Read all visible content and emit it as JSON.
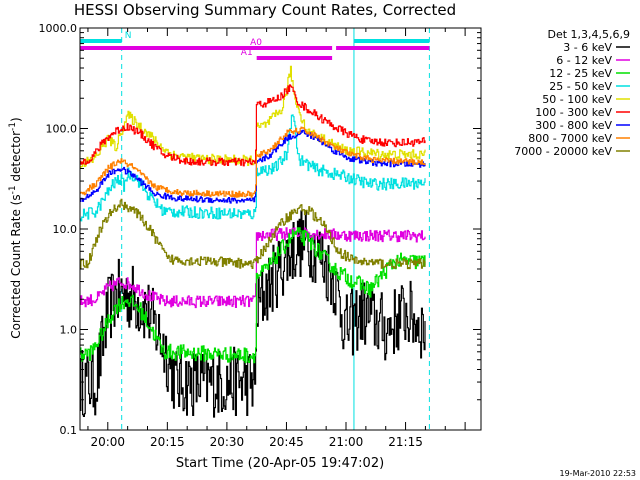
{
  "chart_data": {
    "type": "line",
    "title": "HESSI Observing Summary Count Rates, Corrected",
    "xlabel": "Start Time (20-Apr-05 19:47:02)",
    "ylabel_prefix": "Corrected Count Rate (s",
    "ylabel_sup1": "-1",
    "ylabel_mid": " detector",
    "ylabel_sup2": "-1",
    "ylabel_suffix": ")",
    "yscale": "log",
    "ylim": [
      0.1,
      1000
    ],
    "xlim_min": [
      -7,
      94
    ],
    "x_unit": "minutes after 20:00",
    "x_ticks": [
      {
        "value": 0,
        "label": "20:00"
      },
      {
        "value": 15,
        "label": "20:15"
      },
      {
        "value": 30,
        "label": "20:30"
      },
      {
        "value": 45,
        "label": "20:45"
      },
      {
        "value": 60,
        "label": "21:00"
      },
      {
        "value": 75,
        "label": "21:15"
      }
    ],
    "y_ticks": [
      {
        "value": 0.1,
        "label": "0.1"
      },
      {
        "value": 1,
        "label": "1.0"
      },
      {
        "value": 10,
        "label": "10.0"
      },
      {
        "value": 100,
        "label": "100.0"
      },
      {
        "value": 1000,
        "label": "1000.0"
      }
    ],
    "legend_header": "Det 1,3,4,5,6,9",
    "legend_position": "right",
    "series": [
      {
        "name": "3 - 6 keV",
        "color": "#000000",
        "points": [
          [
            -7,
            0.3
          ],
          [
            -3,
            0.3
          ],
          [
            0,
            1.5
          ],
          [
            2,
            2.2
          ],
          [
            4,
            2.3
          ],
          [
            7,
            2.0
          ],
          [
            10,
            1.5
          ],
          [
            14,
            0.7
          ],
          [
            17,
            0.3
          ],
          [
            37.2,
            0.3
          ],
          [
            37.3,
            1.5
          ],
          [
            40,
            2.5
          ],
          [
            43,
            4.0
          ],
          [
            46,
            6.0
          ],
          [
            49,
            7.5
          ],
          [
            52,
            6.5
          ],
          [
            54,
            5.0
          ],
          [
            57,
            3.0
          ],
          [
            60,
            1.0
          ],
          [
            64,
            1.5
          ],
          [
            70,
            1.0
          ],
          [
            75,
            1.5
          ],
          [
            80,
            1.0
          ]
        ],
        "noise": 0.35
      },
      {
        "name": "6 - 12 keV",
        "color": "#e000e0",
        "points": [
          [
            -7,
            1.9
          ],
          [
            -3,
            2.0
          ],
          [
            0,
            2.6
          ],
          [
            3,
            3.0
          ],
          [
            6,
            2.8
          ],
          [
            10,
            2.2
          ],
          [
            14,
            1.9
          ],
          [
            37.2,
            1.9
          ],
          [
            37.3,
            8.6
          ],
          [
            42,
            8.8
          ],
          [
            48,
            9.2
          ],
          [
            52,
            9.0
          ],
          [
            56,
            8.8
          ],
          [
            62,
            8.6
          ],
          [
            70,
            8.6
          ],
          [
            80,
            8.5
          ]
        ],
        "noise": 0.06
      },
      {
        "name": "12 - 25 keV",
        "color": "#00e000",
        "points": [
          [
            -7,
            0.55
          ],
          [
            -4,
            0.6
          ],
          [
            -1,
            1.0
          ],
          [
            2,
            1.7
          ],
          [
            5,
            2.0
          ],
          [
            8,
            1.6
          ],
          [
            11,
            1.0
          ],
          [
            14,
            0.6
          ],
          [
            37.2,
            0.55
          ],
          [
            37.3,
            3.3
          ],
          [
            40,
            4.0
          ],
          [
            44,
            6.5
          ],
          [
            47,
            9.0
          ],
          [
            50,
            8.0
          ],
          [
            53,
            6.0
          ],
          [
            57,
            4.0
          ],
          [
            60,
            3.3
          ],
          [
            66,
            2.5
          ],
          [
            72,
            4.8
          ],
          [
            80,
            4.7
          ]
        ],
        "noise": 0.08
      },
      {
        "name": "25 - 50 keV",
        "color": "#00e0e0",
        "points": [
          [
            -7,
            13.5
          ],
          [
            -3,
            15
          ],
          [
            -1,
            20
          ],
          [
            1,
            27
          ],
          [
            3,
            32
          ],
          [
            4,
            27
          ],
          [
            5,
            36
          ],
          [
            7,
            33
          ],
          [
            10,
            22
          ],
          [
            14,
            15
          ],
          [
            37.2,
            14
          ],
          [
            37.3,
            38
          ],
          [
            42,
            40
          ],
          [
            45,
            55
          ],
          [
            46.5,
            160
          ],
          [
            48,
            50
          ],
          [
            52,
            40
          ],
          [
            56,
            36
          ],
          [
            60,
            33
          ],
          [
            66,
            28
          ],
          [
            72,
            28
          ],
          [
            80,
            29
          ]
        ],
        "noise": 0.06
      },
      {
        "name": "50 - 100 keV",
        "color": "#e0e000",
        "points": [
          [
            -7,
            45
          ],
          [
            -4,
            48
          ],
          [
            -2,
            60
          ],
          [
            0,
            80
          ],
          [
            2,
            65
          ],
          [
            4,
            110
          ],
          [
            5,
            135
          ],
          [
            7,
            115
          ],
          [
            10,
            90
          ],
          [
            13,
            68
          ],
          [
            16,
            55
          ],
          [
            22,
            50
          ],
          [
            36.5,
            48
          ],
          [
            37.2,
            48
          ],
          [
            37.3,
            100
          ],
          [
            40,
            110
          ],
          [
            44,
            160
          ],
          [
            46,
            380
          ],
          [
            47,
            200
          ],
          [
            50,
            95
          ],
          [
            55,
            75
          ],
          [
            60,
            60
          ],
          [
            70,
            55
          ],
          [
            80,
            55
          ]
        ],
        "noise": 0.05
      },
      {
        "name": "100 - 300 keV",
        "color": "#ff0000",
        "points": [
          [
            -7,
            45
          ],
          [
            -4,
            52
          ],
          [
            -1,
            75
          ],
          [
            2,
            95
          ],
          [
            5,
            105
          ],
          [
            8,
            90
          ],
          [
            11,
            70
          ],
          [
            14,
            55
          ],
          [
            20,
            47
          ],
          [
            36.5,
            46
          ],
          [
            37.2,
            47
          ],
          [
            37.3,
            170
          ],
          [
            40,
            180
          ],
          [
            43,
            200
          ],
          [
            46,
            260
          ],
          [
            48,
            180
          ],
          [
            52,
            140
          ],
          [
            56,
            110
          ],
          [
            60,
            90
          ],
          [
            65,
            75
          ],
          [
            72,
            72
          ],
          [
            80,
            74
          ]
        ],
        "noise": 0.04
      },
      {
        "name": "300 - 800 keV",
        "color": "#0000ff",
        "points": [
          [
            -7,
            19
          ],
          [
            -3,
            24
          ],
          [
            0,
            35
          ],
          [
            3,
            40
          ],
          [
            6,
            35
          ],
          [
            9,
            28
          ],
          [
            12,
            22
          ],
          [
            18,
            20
          ],
          [
            36.5,
            19
          ],
          [
            37.2,
            20
          ],
          [
            37.3,
            45
          ],
          [
            41,
            55
          ],
          [
            45,
            80
          ],
          [
            49,
            92
          ],
          [
            53,
            78
          ],
          [
            57,
            60
          ],
          [
            61,
            50
          ],
          [
            68,
            45
          ],
          [
            80,
            44
          ]
        ],
        "noise": 0.03
      },
      {
        "name": "800 - 7000 keV",
        "color": "#ff8000",
        "points": [
          [
            -7,
            22
          ],
          [
            -3,
            28
          ],
          [
            0,
            40
          ],
          [
            3,
            48
          ],
          [
            6,
            42
          ],
          [
            9,
            33
          ],
          [
            12,
            26
          ],
          [
            18,
            23
          ],
          [
            36.5,
            22
          ],
          [
            37.2,
            23
          ],
          [
            37.3,
            52
          ],
          [
            41,
            62
          ],
          [
            45,
            90
          ],
          [
            49,
            97
          ],
          [
            53,
            82
          ],
          [
            57,
            65
          ],
          [
            61,
            55
          ],
          [
            68,
            48
          ],
          [
            80,
            46
          ]
        ],
        "noise": 0.03
      },
      {
        "name": "7000 - 20000 keV",
        "color": "#808000",
        "points": [
          [
            -7,
            4.5
          ],
          [
            -5,
            4.6
          ],
          [
            -2,
            10
          ],
          [
            1,
            15
          ],
          [
            3,
            18
          ],
          [
            6,
            16
          ],
          [
            9,
            12
          ],
          [
            12,
            8
          ],
          [
            15,
            5
          ],
          [
            36.5,
            4.5
          ],
          [
            37.2,
            4.5
          ],
          [
            37.3,
            4.7
          ],
          [
            40,
            7
          ],
          [
            44,
            12
          ],
          [
            48,
            16
          ],
          [
            51,
            15
          ],
          [
            55,
            10
          ],
          [
            58,
            6
          ],
          [
            62,
            4.8
          ],
          [
            70,
            4.5
          ],
          [
            80,
            4.5
          ]
        ],
        "noise": 0.05
      }
    ],
    "vlines_dashed": [
      {
        "x": 3.5,
        "color": "#00e0e0"
      },
      {
        "x": 81,
        "color": "#00e0e0"
      }
    ],
    "vlines_solid": [
      {
        "x": -7,
        "color": "#00e0e0"
      },
      {
        "x": 62,
        "color": "#00e0e0"
      }
    ],
    "flag_bars": [
      {
        "label": "N",
        "color": "#00e0e0",
        "y_level": 1,
        "segments": [
          [
            -7,
            3.5
          ],
          [
            62,
            81
          ]
        ]
      },
      {
        "label": "A0",
        "color": "#e000e0",
        "y_level": 2,
        "segments": [
          [
            -7,
            56.5
          ],
          [
            57.5,
            81
          ]
        ]
      },
      {
        "label": "A1",
        "color": "#e000e0",
        "y_level": 3,
        "segments": [
          [
            37.5,
            56.5
          ]
        ]
      }
    ],
    "footer_date": "19-Mar-2010 22:53"
  }
}
